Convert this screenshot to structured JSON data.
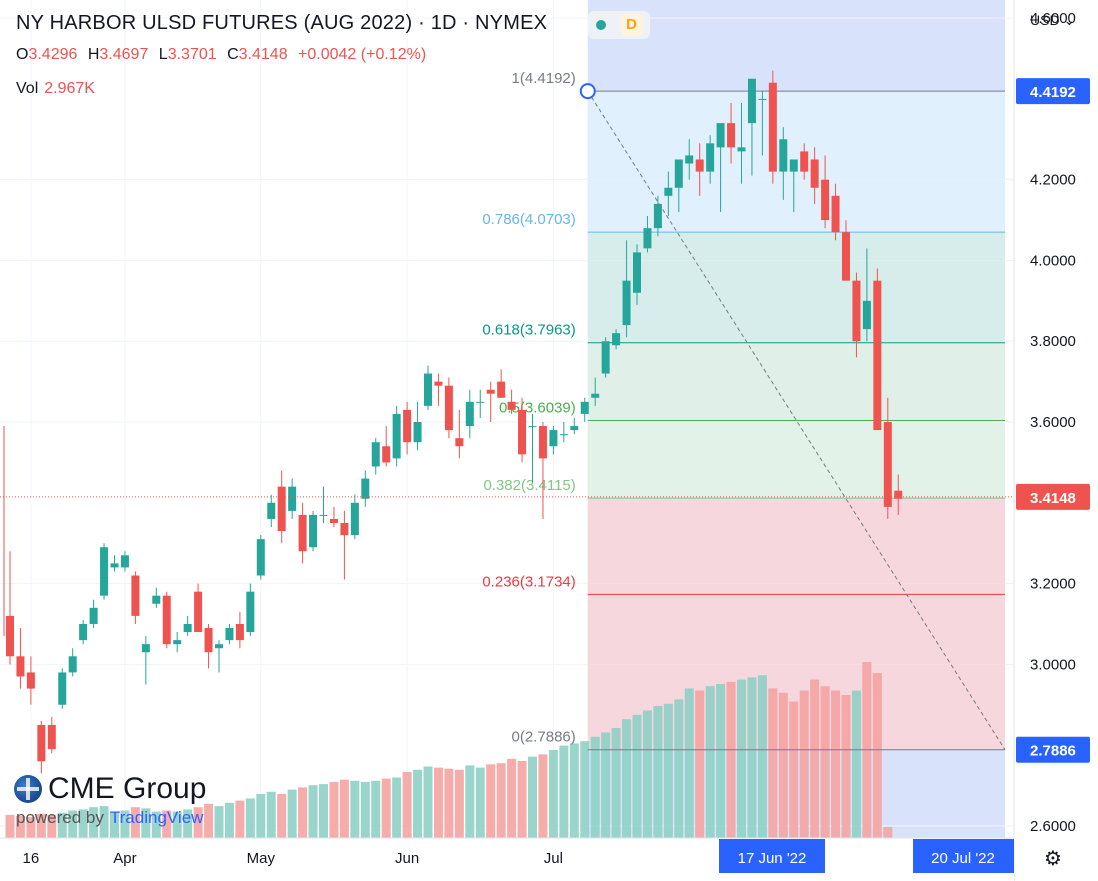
{
  "header": {
    "title": "NY HARBOR ULSD FUTURES (AUG 2022) · 1D · NYMEX",
    "badge_letter": "D",
    "ohlc": {
      "o_label": "O",
      "o": "3.4296",
      "h_label": "H",
      "h": "3.4697",
      "l_label": "L",
      "l": "3.3701",
      "c_label": "C",
      "c": "3.4148",
      "change": "+0.0042 (+0.12%)"
    },
    "vol_label": "Vol",
    "vol_value": "2.967K"
  },
  "currency_menu": "USD",
  "branding": {
    "logo": "CME Group",
    "powered_by": "powered by",
    "tradingview": "TradingView"
  },
  "chart_data": {
    "type": "candlestick",
    "price_axis": {
      "ticks": [
        "4.6000",
        "4.2000",
        "4.0000",
        "3.8000",
        "3.6000",
        "3.2000",
        "3.0000",
        "2.6000"
      ],
      "range": [
        2.58,
        4.63
      ],
      "last_price": "3.4148",
      "marker_high": "4.4192",
      "marker_low": "2.7886"
    },
    "time_axis": {
      "labels": [
        "16",
        "Apr",
        "May",
        "Jun",
        "Jul"
      ],
      "label_indices": [
        2,
        11,
        24,
        38,
        52
      ],
      "highlight_start": "17 Jun '22",
      "highlight_end": "20 Jul '22"
    },
    "fibonacci": {
      "levels": [
        {
          "ratio": "1",
          "price": 4.4192,
          "label": "1(4.4192)",
          "color": "#787b86",
          "fill": "#e0e0e0"
        },
        {
          "ratio": "0.786",
          "price": 4.0703,
          "label": "0.786(4.0703)",
          "color": "#64b5f6",
          "fill": "#e3f2fd"
        },
        {
          "ratio": "0.618",
          "price": 3.7963,
          "label": "0.618(3.7963)",
          "color": "#089981",
          "fill": "#d6efe9"
        },
        {
          "ratio": "0.5",
          "price": 3.6039,
          "label": "0.5(3.6039)",
          "color": "#4caf50",
          "fill": "#e2f2e4"
        },
        {
          "ratio": "0.382",
          "price": 3.4115,
          "label": "0.382(3.4115)",
          "color": "#81c784",
          "fill": "#e5f4e5"
        },
        {
          "ratio": "0.236",
          "price": 3.1734,
          "label": "0.236(3.1734)",
          "color": "#f23645",
          "fill": "#fbd5d8"
        },
        {
          "ratio": "0",
          "price": 2.7886,
          "label": "0(2.7886)",
          "color": "#787b86",
          "fill": "#fbd5d8"
        }
      ],
      "start_bar": 55,
      "end_bar": 71
    },
    "candles": [
      [
        3.12,
        3.28,
        3.0,
        3.02,
        1.05
      ],
      [
        3.02,
        3.09,
        2.94,
        2.97,
        1.0
      ],
      [
        2.98,
        3.02,
        2.9,
        2.94,
        0.95
      ],
      [
        2.85,
        2.86,
        2.73,
        2.76,
        1.1
      ],
      [
        2.85,
        2.87,
        2.78,
        2.79,
        1.05
      ],
      [
        2.9,
        2.99,
        2.89,
        2.98,
        1.15
      ],
      [
        2.98,
        3.04,
        2.97,
        3.02,
        1.25
      ],
      [
        3.06,
        3.11,
        3.05,
        3.1,
        1.3
      ],
      [
        3.1,
        3.16,
        3.09,
        3.14,
        1.4
      ],
      [
        3.17,
        3.3,
        3.16,
        3.29,
        1.45
      ],
      [
        3.24,
        3.27,
        3.23,
        3.25,
        1.2
      ],
      [
        3.24,
        3.28,
        3.23,
        3.27,
        1.25
      ],
      [
        3.22,
        3.23,
        3.1,
        3.12,
        1.4
      ],
      [
        3.03,
        3.07,
        2.95,
        3.05,
        1.35
      ],
      [
        3.15,
        3.19,
        3.14,
        3.17,
        1.2
      ],
      [
        3.17,
        3.18,
        3.04,
        3.05,
        1.25
      ],
      [
        3.05,
        3.08,
        3.03,
        3.06,
        1.2
      ],
      [
        3.08,
        3.12,
        3.07,
        3.1,
        1.3
      ],
      [
        3.18,
        3.2,
        3.08,
        3.08,
        1.4
      ],
      [
        3.09,
        3.1,
        2.99,
        3.03,
        1.55
      ],
      [
        3.04,
        3.06,
        2.98,
        3.05,
        1.45
      ],
      [
        3.06,
        3.1,
        3.05,
        3.09,
        1.6
      ],
      [
        3.1,
        3.13,
        3.04,
        3.06,
        1.7
      ],
      [
        3.08,
        3.2,
        3.07,
        3.18,
        1.8
      ],
      [
        3.22,
        3.32,
        3.21,
        3.31,
        2.0
      ],
      [
        3.36,
        3.42,
        3.34,
        3.4,
        2.1
      ],
      [
        3.44,
        3.48,
        3.3,
        3.33,
        2.0
      ],
      [
        3.38,
        3.46,
        3.36,
        3.44,
        2.2
      ],
      [
        3.37,
        3.4,
        3.25,
        3.28,
        2.3
      ],
      [
        3.29,
        3.38,
        3.28,
        3.37,
        2.4
      ],
      [
        3.37,
        3.44,
        3.35,
        3.37,
        2.45
      ],
      [
        3.36,
        3.39,
        3.34,
        3.35,
        2.55
      ],
      [
        3.35,
        3.38,
        3.21,
        3.32,
        2.65
      ],
      [
        3.32,
        3.42,
        3.31,
        3.4,
        2.6
      ],
      [
        3.41,
        3.48,
        3.39,
        3.46,
        2.55
      ],
      [
        3.49,
        3.56,
        3.47,
        3.55,
        2.6
      ],
      [
        3.54,
        3.59,
        3.49,
        3.5,
        2.7
      ],
      [
        3.51,
        3.64,
        3.49,
        3.62,
        2.75
      ],
      [
        3.63,
        3.65,
        3.52,
        3.55,
        3.0
      ],
      [
        3.55,
        3.65,
        3.53,
        3.6,
        3.1
      ],
      [
        3.64,
        3.74,
        3.63,
        3.72,
        3.25
      ],
      [
        3.7,
        3.72,
        3.64,
        3.69,
        3.2
      ],
      [
        3.69,
        3.71,
        3.56,
        3.58,
        3.15
      ],
      [
        3.56,
        3.63,
        3.51,
        3.54,
        3.1
      ],
      [
        3.59,
        3.68,
        3.56,
        3.65,
        3.3
      ],
      [
        3.65,
        3.68,
        3.61,
        3.65,
        3.2
      ],
      [
        3.68,
        3.7,
        3.6,
        3.67,
        3.35
      ],
      [
        3.7,
        3.73,
        3.66,
        3.66,
        3.4
      ],
      [
        3.65,
        3.68,
        3.62,
        3.63,
        3.6
      ],
      [
        3.63,
        3.66,
        3.5,
        3.52,
        3.5
      ],
      [
        3.59,
        3.62,
        3.45,
        3.59,
        3.7
      ],
      [
        3.59,
        3.6,
        3.36,
        3.51,
        3.8
      ],
      [
        3.54,
        3.59,
        3.52,
        3.58,
        4.0
      ],
      [
        3.57,
        3.6,
        3.55,
        3.57,
        4.2
      ],
      [
        3.58,
        3.61,
        3.57,
        3.59,
        4.3
      ],
      [
        3.62,
        3.66,
        3.6,
        3.65,
        4.4
      ],
      [
        3.66,
        3.71,
        3.64,
        3.67,
        4.6
      ],
      [
        3.72,
        3.81,
        3.71,
        3.8,
        4.8
      ],
      [
        3.79,
        3.83,
        3.78,
        3.82,
        5.0
      ],
      [
        3.84,
        4.05,
        3.81,
        3.95,
        5.4
      ],
      [
        3.92,
        4.04,
        3.89,
        4.02,
        5.6
      ],
      [
        4.03,
        4.11,
        4.02,
        4.08,
        5.8
      ],
      [
        4.08,
        4.16,
        4.06,
        4.14,
        6.0
      ],
      [
        4.16,
        4.22,
        4.11,
        4.18,
        6.1
      ],
      [
        4.18,
        4.25,
        4.12,
        4.25,
        6.3
      ],
      [
        4.24,
        4.3,
        4.2,
        4.26,
        6.8
      ],
      [
        4.25,
        4.29,
        4.16,
        4.22,
        6.7
      ],
      [
        4.22,
        4.31,
        4.19,
        4.29,
        6.9
      ],
      [
        4.28,
        4.33,
        4.12,
        4.34,
        7.0
      ],
      [
        4.34,
        4.39,
        4.24,
        4.28,
        7.1
      ],
      [
        4.27,
        4.39,
        4.19,
        4.28,
        7.2
      ],
      [
        4.34,
        4.44,
        4.21,
        4.45,
        7.3
      ],
      [
        4.4,
        4.42,
        4.26,
        4.4,
        7.4
      ]
    ]
  }
}
